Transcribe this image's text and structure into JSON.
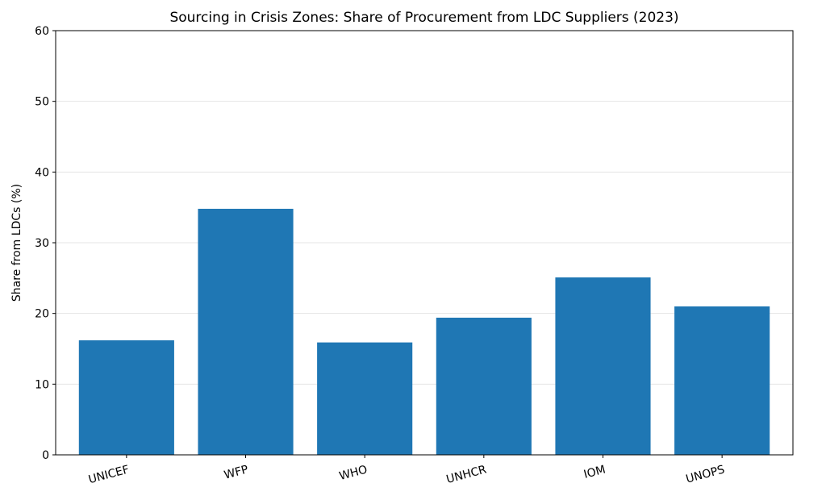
{
  "chart_data": {
    "type": "bar",
    "title": "Sourcing in Crisis Zones: Share of Procurement from LDC Suppliers (2023)",
    "xlabel": "",
    "ylabel": "Share from LDCs (%)",
    "categories": [
      "UNICEF",
      "WFP",
      "WHO",
      "UNHCR",
      "IOM",
      "UNOPS"
    ],
    "values": [
      16.2,
      34.8,
      15.9,
      19.4,
      25.1,
      21.0
    ],
    "ylim": [
      0,
      60
    ],
    "yticks": [
      "0",
      "10",
      "20",
      "30",
      "40",
      "50",
      "60"
    ],
    "grid": "horizontal",
    "bar_color": "#1f77b4",
    "grid_color": "#e5e5e5"
  }
}
